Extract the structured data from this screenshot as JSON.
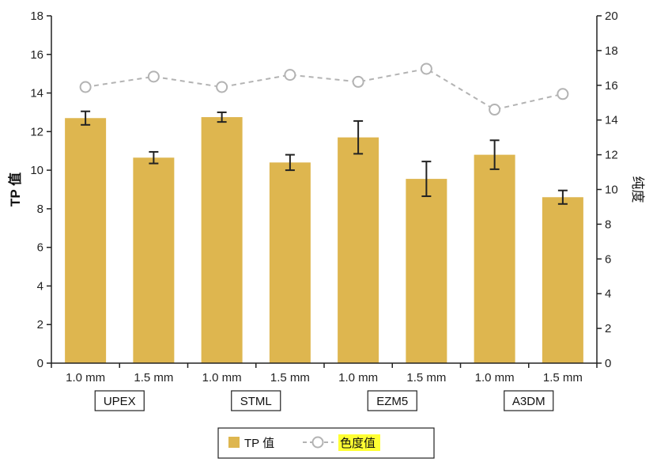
{
  "chart_data": {
    "type": "bar",
    "categories": [
      "1.0 mm",
      "1.5 mm",
      "1.0 mm",
      "1.5 mm",
      "1.0 mm",
      "1.5 mm",
      "1.0 mm",
      "1.5 mm"
    ],
    "groups": [
      "UPEX",
      "STML",
      "EZM5",
      "A3DM"
    ],
    "ylabel": "TP 值",
    "y2label": "纯度",
    "ylim": [
      0,
      18
    ],
    "y2lim": [
      0,
      20
    ],
    "yticks": [
      0,
      2,
      4,
      6,
      8,
      10,
      12,
      14,
      16,
      18
    ],
    "y2ticks": [
      0,
      2,
      4,
      6,
      8,
      10,
      12,
      14,
      16,
      18,
      20
    ],
    "grid": false,
    "legend_position": "bottom",
    "series": [
      {
        "name": "TP 值",
        "type": "bar",
        "axis": "left",
        "color": "#DEB64F",
        "values": [
          12.7,
          10.65,
          12.75,
          10.4,
          11.7,
          9.55,
          10.8,
          8.6
        ],
        "errors": [
          0.35,
          0.3,
          0.25,
          0.4,
          0.85,
          0.9,
          0.75,
          0.35
        ]
      },
      {
        "name": "色度值",
        "type": "line",
        "axis": "right",
        "color": "#B3B3B3",
        "values": [
          15.9,
          16.5,
          15.9,
          16.6,
          16.2,
          16.95,
          14.6,
          15.5
        ]
      }
    ]
  }
}
